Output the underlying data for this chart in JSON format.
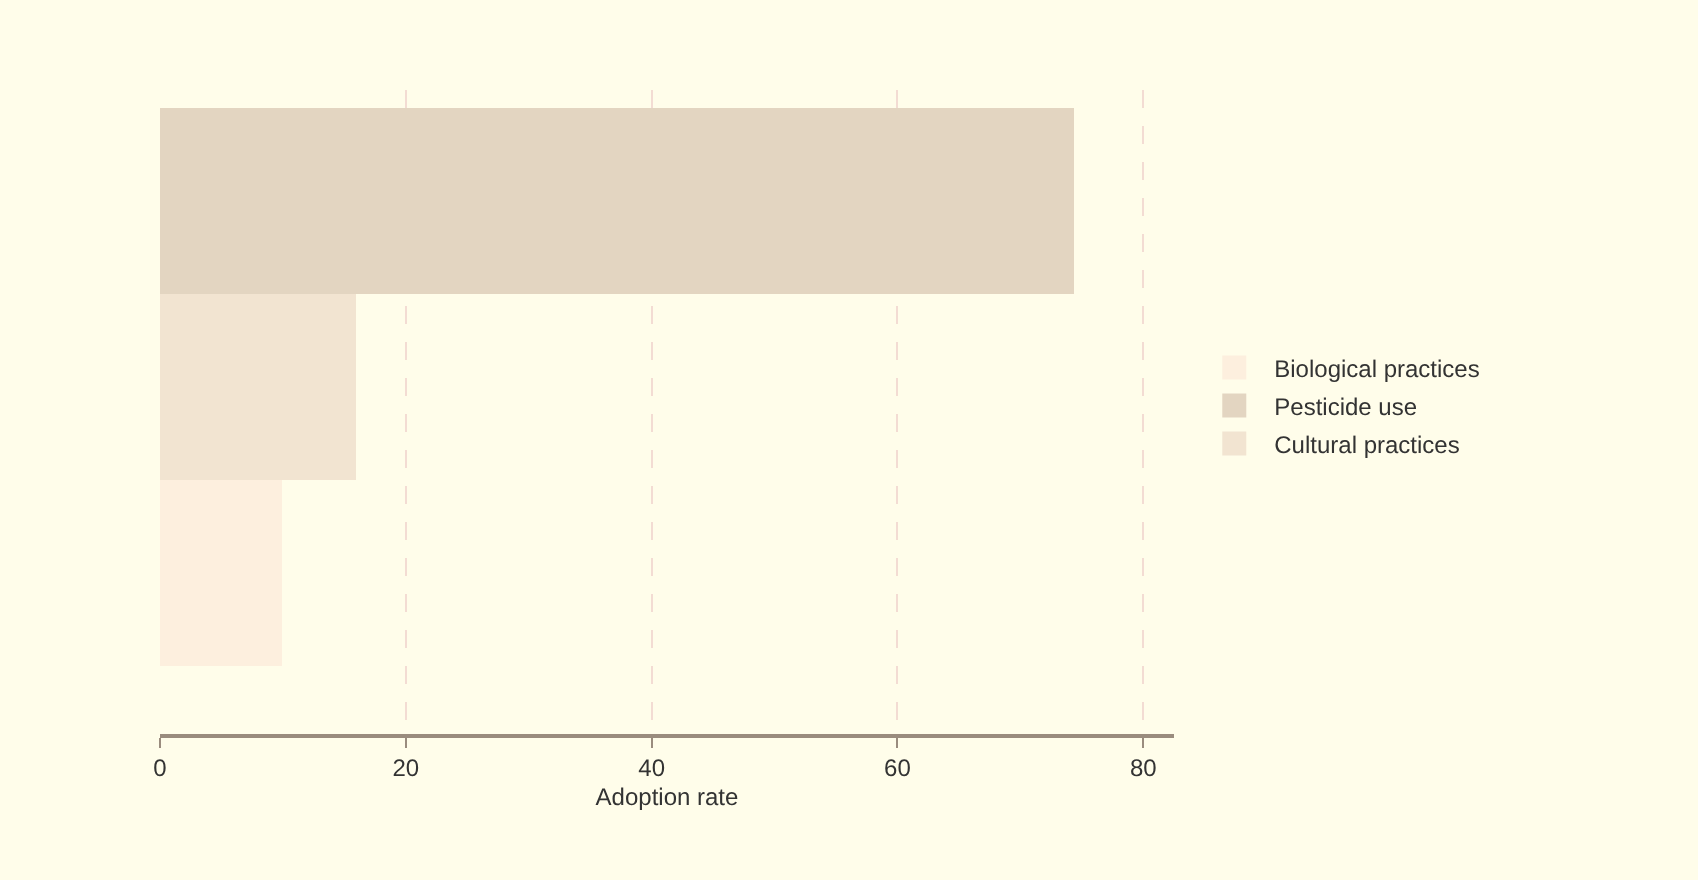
{
  "chart_data": {
    "type": "bar",
    "orientation": "horizontal",
    "xlabel": "Adoption rate",
    "categories": [
      null,
      null,
      null
    ],
    "series": [
      {
        "name": "Biological practices",
        "color": "#fdefde",
        "values": [
          null,
          null,
          10
        ]
      },
      {
        "name": "Pesticide use",
        "color": "#e3d5c1",
        "values": [
          74.3,
          null,
          null
        ]
      },
      {
        "name": "Cultural practices",
        "color": "#f2e4d1",
        "values": [
          null,
          16,
          null
        ]
      }
    ],
    "xlim": [
      0,
      82.5
    ],
    "xticks": [
      0,
      20,
      40,
      60,
      80
    ],
    "grid": "x",
    "legend": "right"
  }
}
